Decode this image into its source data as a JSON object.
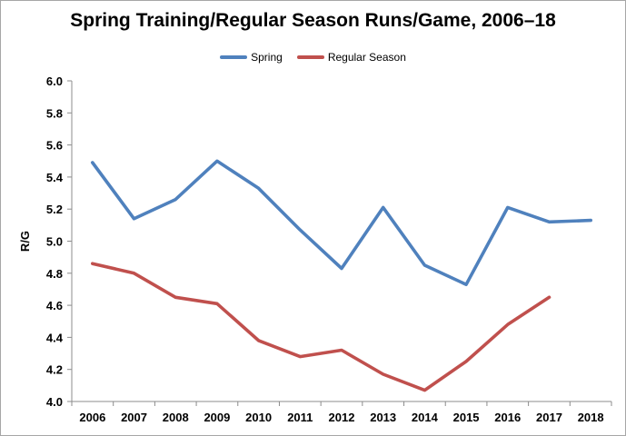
{
  "chart_data": {
    "type": "line",
    "title": "Spring Training/Regular Season Runs/Game, 2006–18",
    "x": [
      2006,
      2007,
      2008,
      2009,
      2010,
      2011,
      2012,
      2013,
      2014,
      2015,
      2016,
      2017,
      2018
    ],
    "series": [
      {
        "name": "Spring",
        "color": "#4F81BD",
        "values": [
          5.49,
          5.14,
          5.26,
          5.5,
          5.33,
          5.07,
          4.83,
          5.21,
          4.85,
          4.73,
          5.21,
          5.12,
          5.13
        ]
      },
      {
        "name": "Regular Season",
        "color": "#C0504D",
        "values": [
          4.86,
          4.8,
          4.65,
          4.61,
          4.38,
          4.28,
          4.32,
          4.17,
          4.07,
          4.25,
          4.48,
          4.65,
          null
        ]
      }
    ],
    "xlabel": "",
    "ylabel": "R/G",
    "ylim": [
      4.0,
      6.0
    ],
    "ytick_step": 0.2,
    "ytick_format_decimals": 1,
    "grid": false,
    "legend_position": "top-center",
    "axis_color": "#8C8C8C",
    "text_color": "#000000",
    "background_color": "#FFFFFF"
  }
}
